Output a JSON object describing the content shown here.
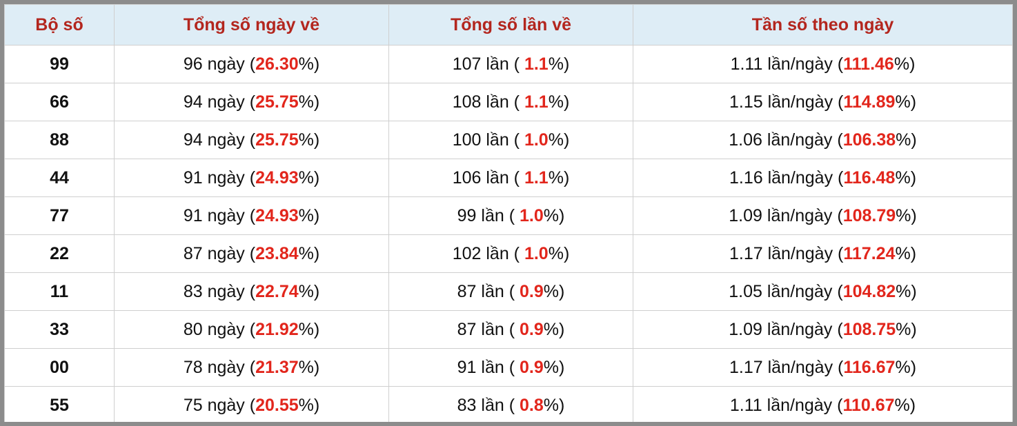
{
  "table": {
    "header": [
      "Bộ số",
      "Tổng số ngày về",
      "Tổng số lần về",
      "Tần số theo ngày"
    ],
    "rows": [
      {
        "bo_so": "99",
        "ngay": [
          "96 ngày (",
          "26.30",
          "%)"
        ],
        "lan": [
          "107 lần ( ",
          "1.1",
          "%)"
        ],
        "tan_so": [
          "1.11 lần/ngày (",
          "111.46",
          "%)"
        ]
      },
      {
        "bo_so": "66",
        "ngay": [
          "94 ngày (",
          "25.75",
          "%)"
        ],
        "lan": [
          "108 lần ( ",
          "1.1",
          "%)"
        ],
        "tan_so": [
          "1.15 lần/ngày (",
          "114.89",
          "%)"
        ]
      },
      {
        "bo_so": "88",
        "ngay": [
          "94 ngày (",
          "25.75",
          "%)"
        ],
        "lan": [
          "100 lần ( ",
          "1.0",
          "%)"
        ],
        "tan_so": [
          "1.06 lần/ngày (",
          "106.38",
          "%)"
        ]
      },
      {
        "bo_so": "44",
        "ngay": [
          "91 ngày (",
          "24.93",
          "%)"
        ],
        "lan": [
          "106 lần ( ",
          "1.1",
          "%)"
        ],
        "tan_so": [
          "1.16 lần/ngày (",
          "116.48",
          "%)"
        ]
      },
      {
        "bo_so": "77",
        "ngay": [
          "91 ngày (",
          "24.93",
          "%)"
        ],
        "lan": [
          "99 lần ( ",
          "1.0",
          "%)"
        ],
        "tan_so": [
          "1.09 lần/ngày (",
          "108.79",
          "%)"
        ]
      },
      {
        "bo_so": "22",
        "ngay": [
          "87 ngày (",
          "23.84",
          "%)"
        ],
        "lan": [
          "102 lần ( ",
          "1.0",
          "%)"
        ],
        "tan_so": [
          "1.17 lần/ngày (",
          "117.24",
          "%)"
        ]
      },
      {
        "bo_so": "11",
        "ngay": [
          "83 ngày (",
          "22.74",
          "%)"
        ],
        "lan": [
          "87 lần ( ",
          "0.9",
          "%)"
        ],
        "tan_so": [
          "1.05 lần/ngày (",
          "104.82",
          "%)"
        ]
      },
      {
        "bo_so": "33",
        "ngay": [
          "80 ngày (",
          "21.92",
          "%)"
        ],
        "lan": [
          "87 lần ( ",
          "0.9",
          "%)"
        ],
        "tan_so": [
          "1.09 lần/ngày (",
          "108.75",
          "%)"
        ]
      },
      {
        "bo_so": "00",
        "ngay": [
          "78 ngày (",
          "21.37",
          "%)"
        ],
        "lan": [
          "91 lần ( ",
          "0.9",
          "%)"
        ],
        "tan_so": [
          "1.17 lần/ngày (",
          "116.67",
          "%)"
        ]
      },
      {
        "bo_so": "55",
        "ngay": [
          "75 ngày (",
          "20.55",
          "%)"
        ],
        "lan": [
          "83 lần ( ",
          "0.8",
          "%)"
        ],
        "tan_so": [
          "1.11 lần/ngày (",
          "110.67",
          "%)"
        ]
      }
    ]
  }
}
